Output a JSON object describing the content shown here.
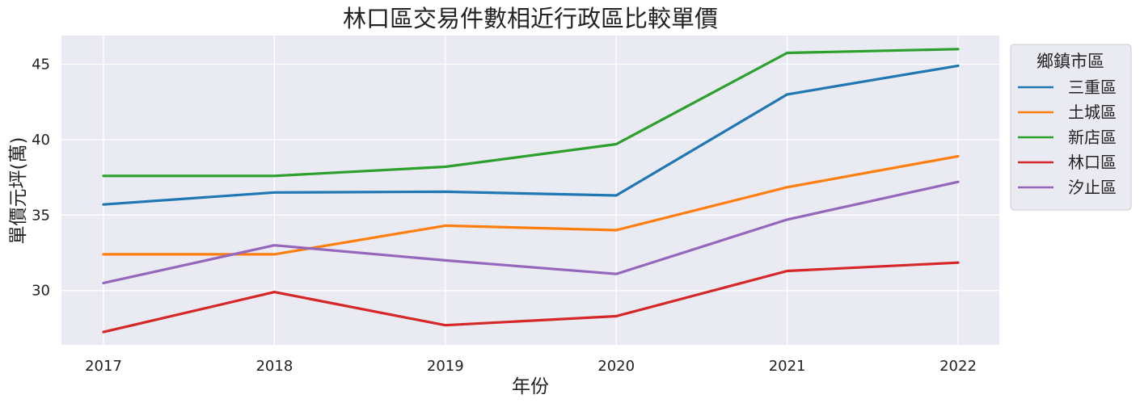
{
  "chart_data": {
    "type": "line",
    "title": "林口區交易件數相近行政區比較單價",
    "xlabel": "年份",
    "ylabel": "單價元坪(萬)",
    "x": [
      "2017",
      "2018",
      "2019",
      "2020",
      "2021",
      "2022"
    ],
    "yticks": [
      "30",
      "35",
      "40",
      "45"
    ],
    "ylim": [
      26.4,
      46.9
    ],
    "grid": true,
    "legend": {
      "title": "鄉鎮市區",
      "placement": "outside-top-right"
    },
    "series": [
      {
        "name": "三重區",
        "color": "#1f77b4",
        "values": [
          35.7,
          36.5,
          36.55,
          36.3,
          43.0,
          44.9
        ]
      },
      {
        "name": "土城區",
        "color": "#ff7f0e",
        "values": [
          32.4,
          32.4,
          34.3,
          34.0,
          36.85,
          38.9
        ]
      },
      {
        "name": "新店區",
        "color": "#2ca02c",
        "values": [
          37.6,
          37.6,
          38.2,
          39.7,
          45.75,
          46.0
        ]
      },
      {
        "name": "林口區",
        "color": "#d62728",
        "values": [
          27.25,
          29.9,
          27.7,
          28.3,
          31.3,
          31.85
        ]
      },
      {
        "name": "汐止區",
        "color": "#9467bd",
        "values": [
          30.5,
          33.0,
          32.0,
          31.1,
          34.7,
          37.2
        ]
      }
    ]
  }
}
